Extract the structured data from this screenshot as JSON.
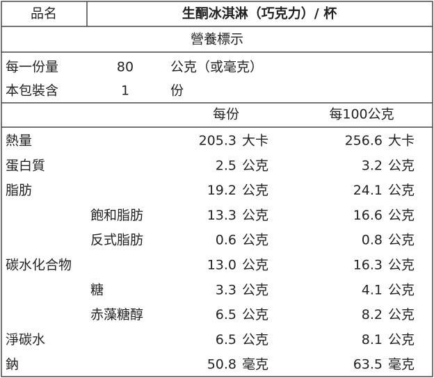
{
  "header": {
    "label": "品名",
    "product": "生酮冰淇淋（巧克力）/ 杯"
  },
  "title": "營養標示",
  "serving": [
    {
      "label": "每一份量",
      "value": "80",
      "unit": "公克（或毫克）"
    },
    {
      "label": "本包裝含",
      "value": "1",
      "unit": "份"
    }
  ],
  "columns": [
    "每份",
    "每100公克"
  ],
  "nutrients": [
    {
      "name": "熱量",
      "per_serving": {
        "value": "205.3",
        "unit": "大卡"
      },
      "per_100g": {
        "value": "256.6",
        "unit": "大卡"
      }
    },
    {
      "name": "蛋白質",
      "per_serving": {
        "value": "2.5",
        "unit": "公克"
      },
      "per_100g": {
        "value": "3.2",
        "unit": "公克"
      }
    },
    {
      "name": "脂肪",
      "per_serving": {
        "value": "19.2",
        "unit": "公克"
      },
      "per_100g": {
        "value": "24.1",
        "unit": "公克"
      },
      "children": [
        {
          "name": "飽和脂肪",
          "per_serving": {
            "value": "13.3",
            "unit": "公克"
          },
          "per_100g": {
            "value": "16.6",
            "unit": "公克"
          }
        },
        {
          "name": "反式脂肪",
          "per_serving": {
            "value": "0.6",
            "unit": "公克"
          },
          "per_100g": {
            "value": "0.8",
            "unit": "公克"
          }
        }
      ]
    },
    {
      "name": "碳水化合物",
      "per_serving": {
        "value": "13.0",
        "unit": "公克"
      },
      "per_100g": {
        "value": "16.3",
        "unit": "公克"
      },
      "children": [
        {
          "name": "糖",
          "per_serving": {
            "value": "3.3",
            "unit": "公克"
          },
          "per_100g": {
            "value": "4.1",
            "unit": "公克"
          }
        },
        {
          "name": "赤藻糖醇",
          "per_serving": {
            "value": "6.5",
            "unit": "公克"
          },
          "per_100g": {
            "value": "8.2",
            "unit": "公克"
          }
        }
      ]
    },
    {
      "name": "淨碳水",
      "per_serving": {
        "value": "6.5",
        "unit": "公克"
      },
      "per_100g": {
        "value": "8.1",
        "unit": "公克"
      }
    },
    {
      "name": "鈉",
      "per_serving": {
        "value": "50.8",
        "unit": "毫克"
      },
      "per_100g": {
        "value": "63.5",
        "unit": "毫克"
      }
    }
  ]
}
